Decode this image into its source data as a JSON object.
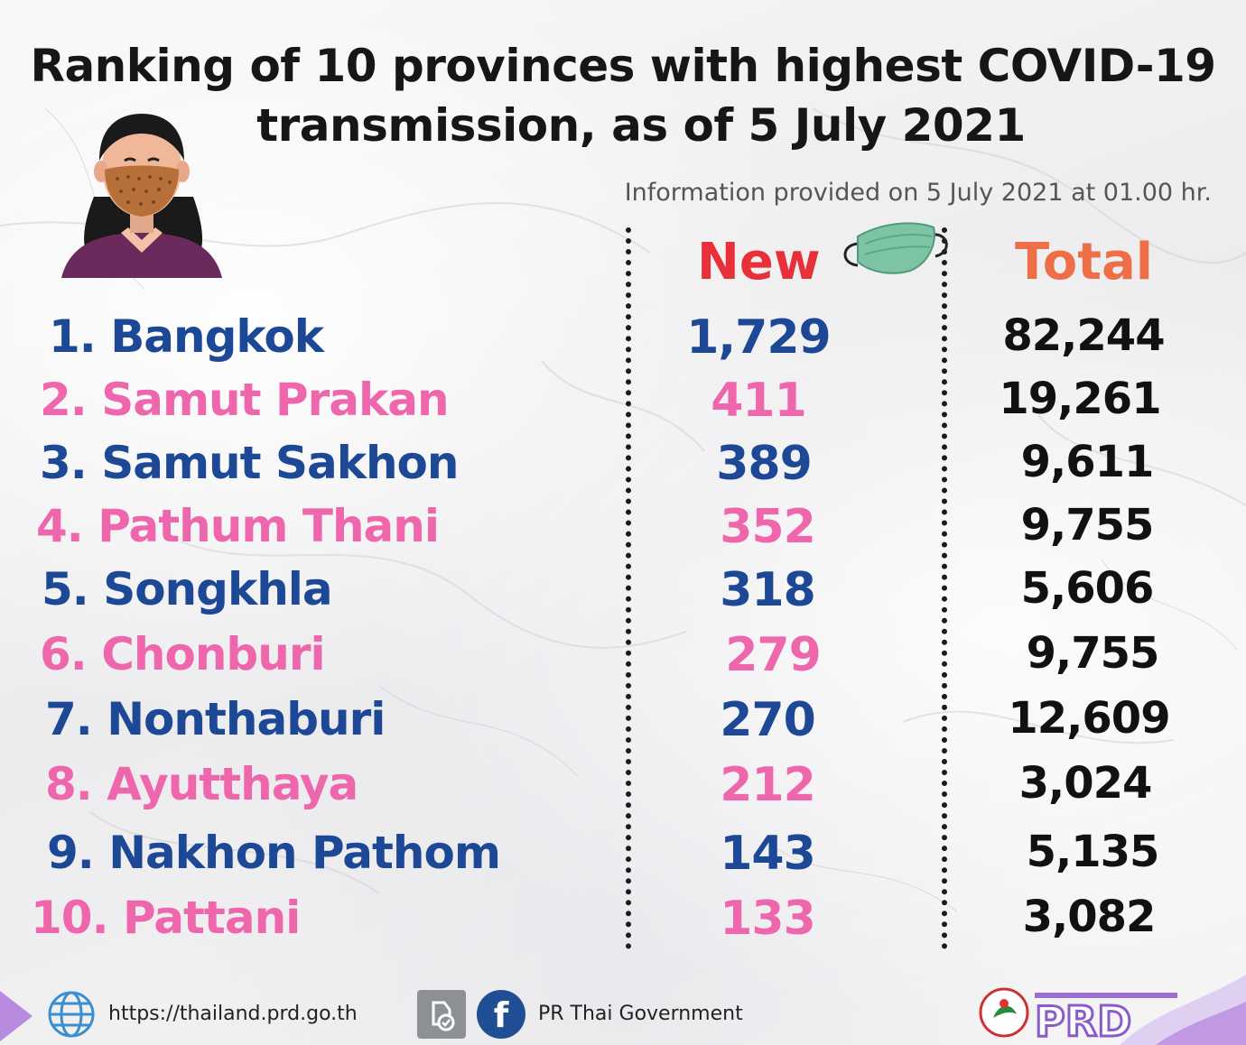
{
  "title_line1": "Ranking of 10 provinces with highest COVID-19",
  "title_line2": "transmission, as of 5 July 2021",
  "subtitle": "Information provided on 5 July 2021 at 01.00 hr.",
  "chart_data": {
    "type": "table",
    "title": "Ranking of 10 provinces with highest COVID-19 transmission, as of 5 July 2021",
    "columns": [
      "New",
      "Total"
    ],
    "rows": [
      {
        "rank_label": "1. Bangkok",
        "new": "1,729",
        "total": "82,244"
      },
      {
        "rank_label": "2. Samut Prakan",
        "new": "411",
        "total": "19,261"
      },
      {
        "rank_label": "3. Samut Sakhon",
        "new": "389",
        "total": "9,611"
      },
      {
        "rank_label": "4. Pathum Thani",
        "new": "352",
        "total": "9,755"
      },
      {
        "rank_label": "5. Songkhla",
        "new": "318",
        "total": "5,606"
      },
      {
        "rank_label": "6. Chonburi",
        "new": "279",
        "total": "9,755"
      },
      {
        "rank_label": "7. Nonthaburi",
        "new": "270",
        "total": "12,609"
      },
      {
        "rank_label": "8. Ayutthaya",
        "new": "212",
        "total": "3,024"
      },
      {
        "rank_label": "9. Nakhon Pathom",
        "new": "143",
        "total": "5,135"
      },
      {
        "rank_label": "10. Pattani",
        "new": "133",
        "total": "3,082"
      }
    ]
  },
  "colors": {
    "blue": "#1d4896",
    "pink": "#ee67ad",
    "new_header": "#e8303a",
    "total_header": "#ee6f47"
  },
  "icons": {
    "avatar": "woman-with-mask-icon",
    "mask": "face-mask-icon",
    "globe": "globe-icon",
    "line": "line-app-icon",
    "facebook": "facebook-icon"
  },
  "footer": {
    "url": "https://thailand.prd.go.th",
    "fb_page": "PR Thai Government",
    "fb_letter": "f",
    "logo_text": "PRD"
  }
}
